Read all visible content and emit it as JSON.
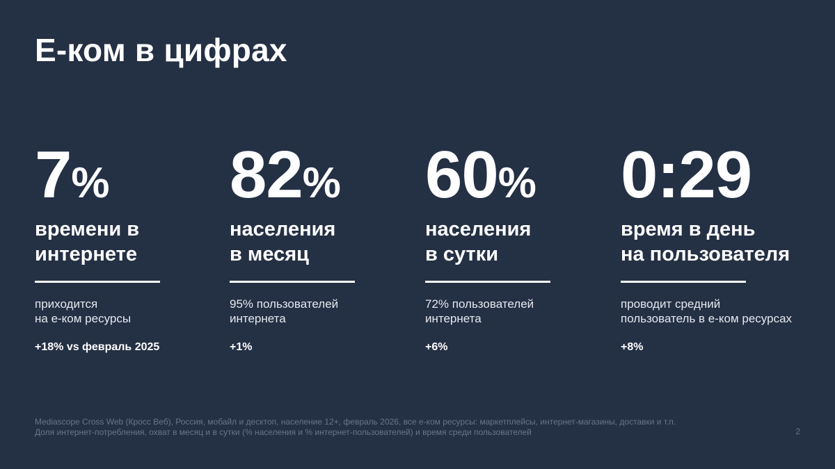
{
  "title": "Е-ком в цифрах",
  "stats": [
    {
      "value": "7",
      "unit": "%",
      "caption_line1": "времени в",
      "caption_line2": "интернете",
      "desc_line1": "приходится",
      "desc_line2": "на е-ком ресурсы",
      "change": "+18% vs февраль 2025"
    },
    {
      "value": "82",
      "unit": "%",
      "caption_line1": "населения",
      "caption_line2": "в месяц",
      "desc_line1": "95% пользователей",
      "desc_line2": "интернета",
      "change": "+1%"
    },
    {
      "value": "60",
      "unit": "%",
      "caption_line1": "населения",
      "caption_line2": "в сутки",
      "desc_line1": "72% пользователей",
      "desc_line2": "интернета",
      "change": "+6%"
    },
    {
      "value": "0:29",
      "unit": "",
      "caption_line1": "время в день",
      "caption_line2": "на пользователя",
      "desc_line1": "проводит средний",
      "desc_line2": "пользователь в е-ком ресурсах",
      "change": "+8%"
    }
  ],
  "footer": {
    "line1": "Mediascope Cross Web (Кросс Веб), Россия, мобайл и десктоп, население 12+, февраль 2026, все е-ком ресурсы: маркетплейсы, интернет-магазины, доставки и т.п.",
    "line2": "Доля интернет-потребления, охват в месяц и в сутки (% населения и % интернет-пользователей) и время среди пользователей"
  },
  "page_number": "2",
  "colors": {
    "background": "#243044",
    "text": "#ffffff",
    "footer_text": "#6a7588"
  }
}
